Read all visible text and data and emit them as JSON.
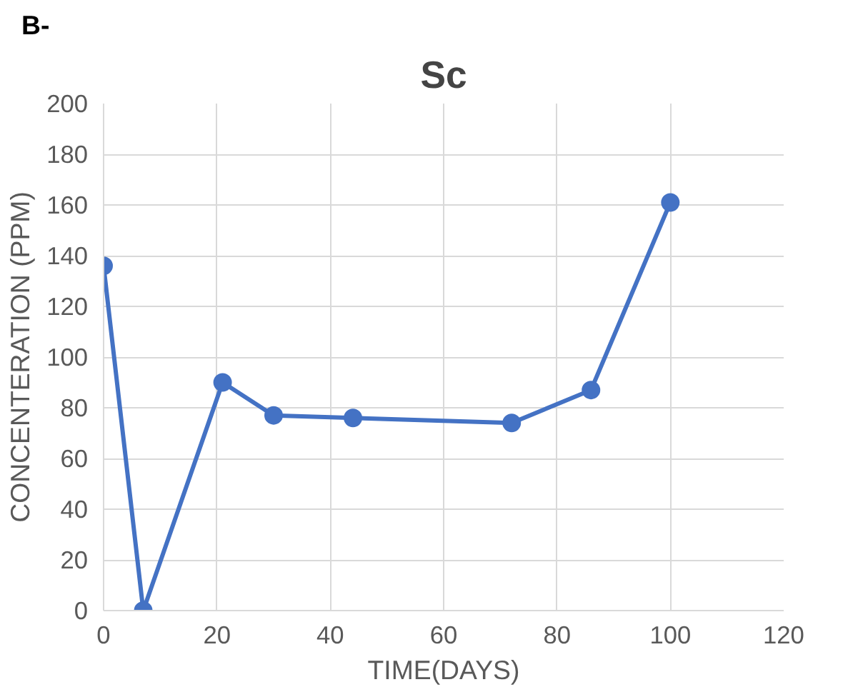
{
  "chart_data": {
    "type": "line",
    "title": "Sc",
    "xlabel": "TIME(DAYS)",
    "ylabel": "CONCENTERATION (PPM)",
    "annotations": [
      "B-"
    ],
    "x": [
      0,
      7,
      21,
      30,
      44,
      72,
      86,
      100
    ],
    "series": [
      {
        "color": "#4472c4",
        "values": [
          136,
          0,
          90,
          77,
          76,
          74,
          87,
          161
        ]
      }
    ],
    "xlim": [
      0,
      120
    ],
    "xticks": [
      0,
      20,
      40,
      60,
      80,
      100,
      120
    ],
    "ylim": [
      0,
      200
    ],
    "yticks": [
      0,
      20,
      40,
      60,
      80,
      100,
      120,
      140,
      160,
      180,
      200
    ],
    "grid": true,
    "marker": "circle",
    "line_style": "solid"
  }
}
